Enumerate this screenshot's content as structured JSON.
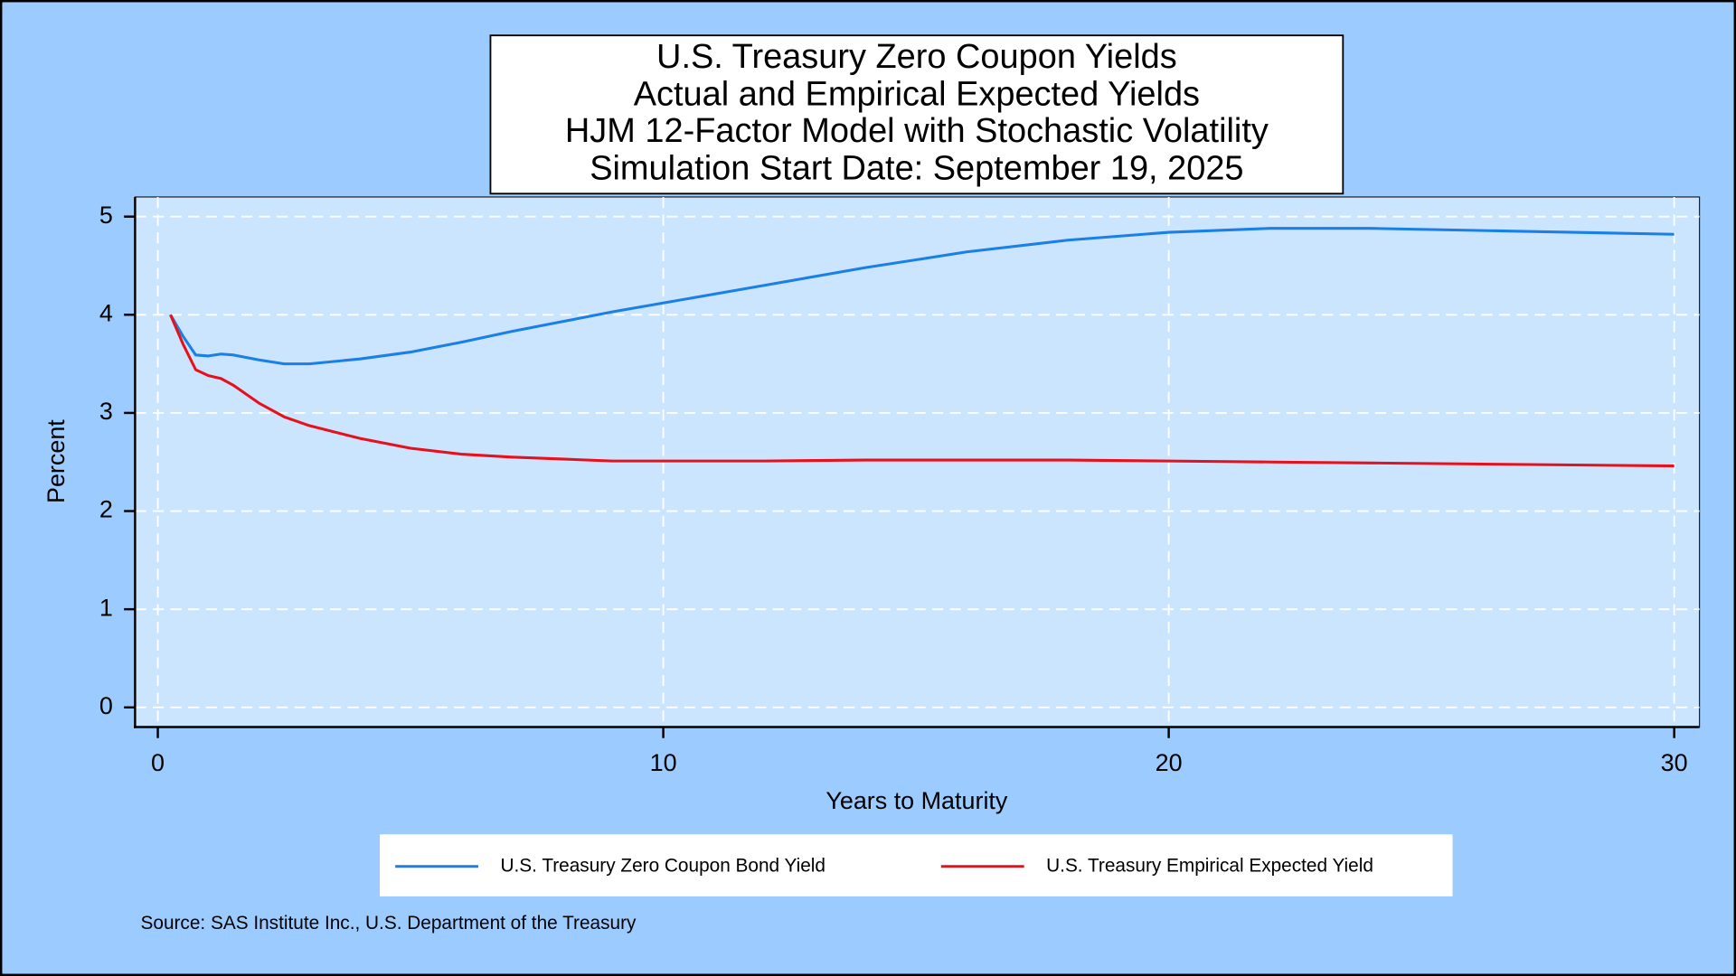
{
  "chart_data": {
    "type": "line",
    "title": [
      "U.S. Treasury Zero Coupon Yields",
      "Actual and Empirical Expected Yields",
      "HJM 12-Factor Model with Stochastic Volatility",
      "Simulation Start Date: September 19, 2025"
    ],
    "x_label": "Years to Maturity",
    "y_label": "Percent",
    "source": "Source: SAS Institute Inc., U.S. Department of the Treasury",
    "x": [
      0.25,
      0.5,
      0.75,
      1,
      1.25,
      1.5,
      2,
      2.5,
      3,
      4,
      5,
      6,
      7,
      8,
      9,
      10,
      12,
      14,
      16,
      18,
      20,
      22,
      24,
      26,
      28,
      30
    ],
    "series": [
      {
        "name": "U.S. Treasury Zero Coupon Bond Yield",
        "color": "#1a7fe6",
        "values": [
          4.0,
          3.78,
          3.59,
          3.58,
          3.6,
          3.59,
          3.54,
          3.5,
          3.5,
          3.55,
          3.62,
          3.72,
          3.83,
          3.93,
          4.03,
          4.12,
          4.3,
          4.48,
          4.64,
          4.76,
          4.84,
          4.88,
          4.88,
          4.86,
          4.84,
          4.82
        ]
      },
      {
        "name": "U.S. Treasury Empirical Expected Yield",
        "color": "#e8101a",
        "values": [
          4.0,
          3.7,
          3.44,
          3.38,
          3.35,
          3.28,
          3.1,
          2.96,
          2.87,
          2.74,
          2.64,
          2.58,
          2.55,
          2.53,
          2.51,
          2.51,
          2.51,
          2.52,
          2.52,
          2.52,
          2.51,
          2.5,
          2.49,
          2.48,
          2.47,
          2.46
        ]
      }
    ],
    "xlim": [
      -0.45,
      30.5
    ],
    "ylim": [
      -0.2,
      5.2
    ],
    "xticks": [
      0,
      10,
      20,
      30
    ],
    "yticks": [
      0,
      1,
      2,
      3,
      4,
      5
    ],
    "grid": true,
    "legend": "bottom"
  }
}
